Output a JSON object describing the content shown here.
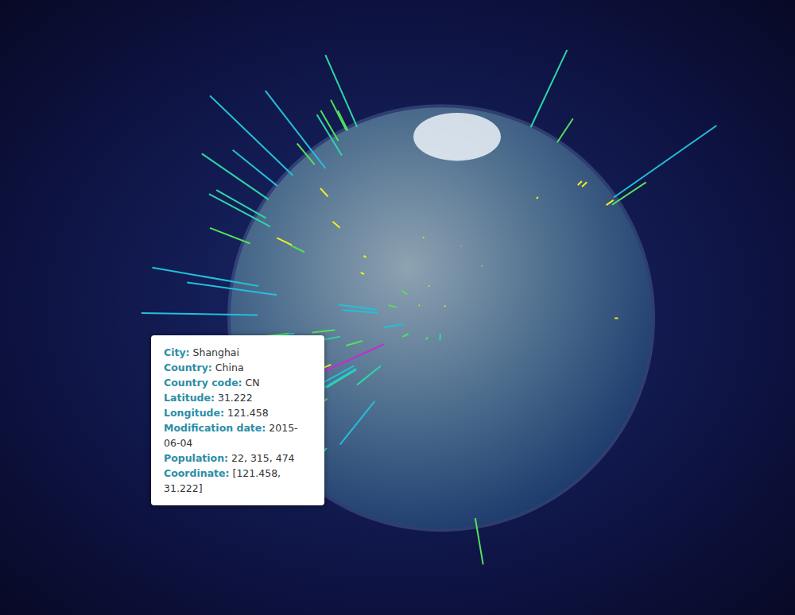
{
  "chart_data": {
    "type": "globe_bar",
    "points": [
      {
        "lat": 31.222,
        "lon": 121.458,
        "value": 22315474,
        "color": "#c42ad6"
      },
      {
        "lat": 39.9,
        "lon": 116.4,
        "value": 11716620,
        "color": "#22c0d8"
      },
      {
        "lat": 35.69,
        "lon": 139.69,
        "value": 8336599,
        "color": "#2ed6a6"
      },
      {
        "lat": 37.57,
        "lon": 126.98,
        "value": 10349312,
        "color": "#22c0d8"
      },
      {
        "lat": 55.75,
        "lon": 37.62,
        "value": 10381222,
        "color": "#22c0d8"
      },
      {
        "lat": 41.01,
        "lon": 28.95,
        "value": 11174257,
        "color": "#22c0d8"
      },
      {
        "lat": 24.86,
        "lon": 67.01,
        "value": 11624219,
        "color": "#22c0d8"
      },
      {
        "lat": 19.07,
        "lon": 72.88,
        "value": 12691836,
        "color": "#22c0d8"
      },
      {
        "lat": 28.65,
        "lon": 77.23,
        "value": 10927986,
        "color": "#22c0d8"
      },
      {
        "lat": 23.71,
        "lon": 90.41,
        "value": 10356500,
        "color": "#22c0d8"
      },
      {
        "lat": 23.12,
        "lon": 113.25,
        "value": 11071424,
        "color": "#22c0d8"
      },
      {
        "lat": 22.55,
        "lon": 114.07,
        "value": 10358381,
        "color": "#22c0d8"
      },
      {
        "lat": 39.14,
        "lon": 117.18,
        "value": 11090314,
        "color": "#22c0d8"
      },
      {
        "lat": 29.56,
        "lon": 106.55,
        "value": 7457600,
        "color": "#2ed6a6"
      },
      {
        "lat": 30.58,
        "lon": 114.27,
        "value": 4184206,
        "color": "#52e05a"
      },
      {
        "lat": 30.67,
        "lon": 104.07,
        "value": 4265557,
        "color": "#52e05a"
      },
      {
        "lat": -6.21,
        "lon": 106.85,
        "value": 8540121,
        "color": "#2ed6a6"
      },
      {
        "lat": 14.6,
        "lon": 120.98,
        "value": 10444527,
        "color": "#22c0d8"
      },
      {
        "lat": 13.75,
        "lon": 100.5,
        "value": 5104476,
        "color": "#2ed6a6"
      },
      {
        "lat": 10.82,
        "lon": 106.63,
        "value": 3467331,
        "color": "#52e05a"
      },
      {
        "lat": 22.28,
        "lon": 114.16,
        "value": 7012738,
        "color": "#2ed6a6"
      },
      {
        "lat": 25.05,
        "lon": 121.53,
        "value": 7871900,
        "color": "#2ed6a6"
      },
      {
        "lat": 34.69,
        "lon": 135.5,
        "value": 2592413,
        "color": "#52e05a"
      },
      {
        "lat": 6.45,
        "lon": 3.39,
        "value": 9000000,
        "color": "#22c0d8"
      },
      {
        "lat": 30.06,
        "lon": 31.25,
        "value": 7734614,
        "color": "#2ed6a6"
      },
      {
        "lat": 35.69,
        "lon": 51.42,
        "value": 7153309,
        "color": "#2ed6a6"
      },
      {
        "lat": 33.34,
        "lon": 44.4,
        "value": 5672513,
        "color": "#2ed6a6"
      },
      {
        "lat": 24.69,
        "lon": 46.72,
        "value": 4205961,
        "color": "#52e05a"
      },
      {
        "lat": 51.51,
        "lon": -0.13,
        "value": 7556900,
        "color": "#2ed6a6"
      },
      {
        "lat": 48.85,
        "lon": 2.35,
        "value": 2138551,
        "color": "#52e05a"
      },
      {
        "lat": 52.52,
        "lon": 13.41,
        "value": 3426354,
        "color": "#52e05a"
      },
      {
        "lat": 40.42,
        "lon": -3.7,
        "value": 3255944,
        "color": "#52e05a"
      },
      {
        "lat": 50.45,
        "lon": 30.52,
        "value": 2797553,
        "color": "#52e05a"
      },
      {
        "lat": 59.94,
        "lon": 30.31,
        "value": 5028000,
        "color": "#2ed6a6"
      },
      {
        "lat": 40.71,
        "lon": -74.01,
        "value": 8175133,
        "color": "#2ed6a6"
      },
      {
        "lat": 34.05,
        "lon": -118.24,
        "value": 3971883,
        "color": "#52e05a"
      },
      {
        "lat": 41.85,
        "lon": -87.65,
        "value": 2720546,
        "color": "#52e05a"
      },
      {
        "lat": 19.43,
        "lon": -99.13,
        "value": 12294193,
        "color": "#22c0d8"
      },
      {
        "lat": 49.25,
        "lon": -123.12,
        "value": 600000,
        "color": "#f0f020"
      },
      {
        "lat": 37.77,
        "lon": -122.42,
        "value": 864816,
        "color": "#f0f020"
      },
      {
        "lat": 47.61,
        "lon": -122.33,
        "value": 684451,
        "color": "#f0f020"
      },
      {
        "lat": 55.04,
        "lon": 82.93,
        "value": 1419007,
        "color": "#f0f020"
      },
      {
        "lat": 56.85,
        "lon": 60.61,
        "value": 1349772,
        "color": "#f0f020"
      },
      {
        "lat": 43.25,
        "lon": 76.92,
        "value": 2000900,
        "color": "#52e05a"
      },
      {
        "lat": 41.26,
        "lon": 69.22,
        "value": 1978028,
        "color": "#f0f020"
      },
      {
        "lat": 47.91,
        "lon": 106.88,
        "value": 844818,
        "color": "#f0f020"
      },
      {
        "lat": 45.75,
        "lon": 126.65,
        "value": 3229883,
        "color": "#52e05a"
      },
      {
        "lat": 41.79,
        "lon": 123.43,
        "value": 3512192,
        "color": "#52e05a"
      },
      {
        "lat": 43.11,
        "lon": 131.87,
        "value": 587022,
        "color": "#f0f020"
      },
      {
        "lat": 43.06,
        "lon": 141.35,
        "value": 1883027,
        "color": "#f0f020"
      },
      {
        "lat": 35.1,
        "lon": 129.04,
        "value": 3678555,
        "color": "#52e05a"
      },
      {
        "lat": 61.22,
        "lon": -149.9,
        "value": 291826,
        "color": "#f0f020"
      },
      {
        "lat": 21.31,
        "lon": -157.86,
        "value": 371657,
        "color": "#f0f020"
      },
      {
        "lat": 52.3,
        "lon": 104.3,
        "value": 586695,
        "color": "#f0f020"
      },
      {
        "lat": 48.48,
        "lon": 135.08,
        "value": 579000,
        "color": "#f0f020"
      },
      {
        "lat": 62.03,
        "lon": 129.73,
        "value": 235600,
        "color": "#f0f020"
      },
      {
        "lat": 59.56,
        "lon": 150.8,
        "value": 95000,
        "color": "#f0f020"
      },
      {
        "lat": 53.04,
        "lon": 158.65,
        "value": 187282,
        "color": "#f0f020"
      },
      {
        "lat": -33.87,
        "lon": 151.21,
        "value": 4627345,
        "color": "#52e05a"
      },
      {
        "lat": 1.29,
        "lon": 103.85,
        "value": 3547809,
        "color": "#52e05a"
      },
      {
        "lat": 22.57,
        "lon": 88.36,
        "value": 4631392,
        "color": "#52e05a"
      },
      {
        "lat": 21.02,
        "lon": 105.84,
        "value": 1431270,
        "color": "#f0f020"
      }
    ],
    "tooltip": [
      {
        "label": "City:",
        "value": "Shanghai"
      },
      {
        "label": "Country:",
        "value": "China"
      },
      {
        "label": "Country code:",
        "value": "CN"
      },
      {
        "label": "Latitude:",
        "value": 31.222
      },
      {
        "label": "Longitude:",
        "value": 121.458
      },
      {
        "label": "Modification date:",
        "value": "2015-06-04"
      },
      {
        "label": "Population:",
        "value": {
          "value": 22315474,
          "label": "22, 315, 474"
        }
      },
      {
        "label": "Coordinate:",
        "value": "[121.458, 31.222]"
      }
    ]
  }
}
